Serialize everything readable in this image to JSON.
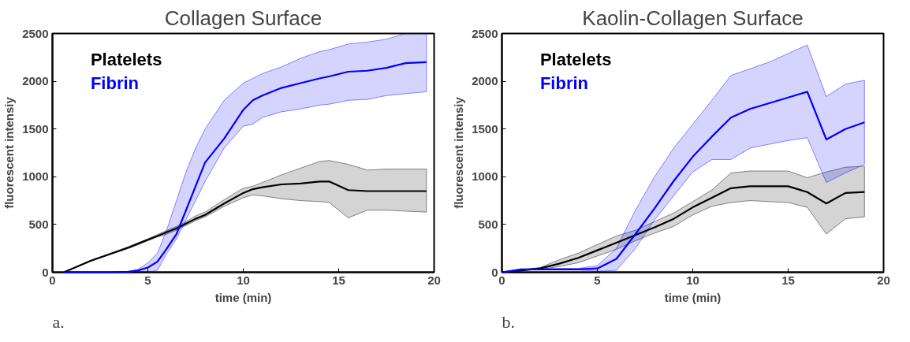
{
  "chart_data": [
    {
      "type": "line",
      "title": "Collagen Surface",
      "xlabel": "time (min)",
      "ylabel": "fluorescent intensiy",
      "annotations": [
        "a."
      ],
      "x": [
        0.6,
        2,
        3,
        4,
        4.5,
        5,
        5.5,
        6,
        6.5,
        7,
        7.5,
        8,
        9,
        10,
        10.5,
        11,
        12,
        13,
        14,
        14.5,
        15.5,
        16.5,
        17.5,
        18.5,
        19.6
      ],
      "series": [
        {
          "name": "Platelets",
          "color": "#000000",
          "values": [
            0,
            120,
            190,
            260,
            300,
            340,
            380,
            420,
            460,
            510,
            560,
            600,
            720,
            830,
            870,
            890,
            920,
            930,
            950,
            950,
            860,
            850,
            850,
            850,
            850
          ],
          "upper": [
            0,
            125,
            195,
            270,
            310,
            350,
            395,
            440,
            480,
            530,
            590,
            630,
            760,
            880,
            900,
            940,
            1020,
            1090,
            1160,
            1170,
            1130,
            1070,
            1080,
            1080,
            1080
          ],
          "lower": [
            0,
            115,
            185,
            250,
            290,
            330,
            370,
            400,
            440,
            490,
            540,
            580,
            690,
            780,
            810,
            800,
            770,
            750,
            740,
            730,
            570,
            650,
            650,
            640,
            630
          ]
        },
        {
          "name": "Fibrin",
          "color": "#0000ff",
          "values": [
            0,
            0,
            0,
            5,
            20,
            50,
            110,
            250,
            400,
            650,
            900,
            1150,
            1400,
            1700,
            1800,
            1850,
            1930,
            1980,
            2030,
            2050,
            2100,
            2110,
            2140,
            2190,
            2200
          ],
          "upper": [
            0,
            0,
            0,
            10,
            30,
            100,
            200,
            450,
            750,
            1050,
            1300,
            1500,
            1800,
            1980,
            2030,
            2080,
            2150,
            2240,
            2310,
            2330,
            2390,
            2410,
            2440,
            2500,
            2500
          ],
          "lower": [
            0,
            0,
            0,
            0,
            5,
            0,
            20,
            200,
            350,
            550,
            750,
            950,
            1300,
            1530,
            1550,
            1620,
            1680,
            1710,
            1750,
            1760,
            1800,
            1810,
            1850,
            1870,
            1890
          ]
        }
      ],
      "xlim": [
        0,
        20
      ],
      "xticks": [
        0,
        5,
        10,
        15,
        20
      ],
      "ylim": [
        0,
        2500
      ],
      "yticks": [
        0,
        500,
        1000,
        1500,
        2000,
        2500
      ],
      "legend": "top left",
      "grid": false,
      "line_style": "solid"
    },
    {
      "type": "line",
      "title": "Kaolin-Collagen Surface",
      "xlabel": "time (min)",
      "ylabel": "fluorescent intensiy",
      "annotations": [
        "b."
      ],
      "x": [
        0,
        1,
        2,
        3,
        4,
        5,
        6,
        7,
        8,
        9,
        10,
        11,
        12,
        13,
        14,
        15,
        16,
        17,
        18,
        19
      ],
      "series": [
        {
          "name": "Platelets",
          "color": "#000000",
          "values": [
            0,
            20,
            40,
            90,
            150,
            230,
            310,
            390,
            470,
            560,
            680,
            780,
            880,
            900,
            900,
            900,
            840,
            720,
            830,
            840
          ],
          "upper": [
            0,
            25,
            50,
            130,
            200,
            290,
            380,
            440,
            530,
            620,
            740,
            860,
            1040,
            1060,
            1060,
            1060,
            990,
            1050,
            1100,
            1110
          ],
          "lower": [
            0,
            15,
            30,
            60,
            100,
            170,
            240,
            330,
            410,
            480,
            600,
            690,
            730,
            750,
            740,
            730,
            680,
            400,
            560,
            580
          ]
        },
        {
          "name": "Fibrin",
          "color": "#0000ff",
          "values": [
            0,
            30,
            30,
            30,
            30,
            40,
            140,
            400,
            670,
            955,
            1210,
            1420,
            1620,
            1710,
            1770,
            1830,
            1890,
            1390,
            1500,
            1570
          ],
          "upper": [
            0,
            35,
            35,
            40,
            40,
            70,
            250,
            650,
            1000,
            1300,
            1550,
            1800,
            2060,
            2130,
            2200,
            2290,
            2380,
            1840,
            1970,
            2010
          ],
          "lower": [
            0,
            25,
            25,
            25,
            25,
            10,
            20,
            250,
            550,
            800,
            1050,
            1180,
            1180,
            1300,
            1340,
            1380,
            1410,
            940,
            1040,
            1130
          ]
        }
      ],
      "xlim": [
        0,
        20
      ],
      "xticks": [
        0,
        5,
        10,
        15,
        20
      ],
      "ylim": [
        0,
        2500
      ],
      "yticks": [
        0,
        500,
        1000,
        1500,
        2000,
        2500
      ],
      "legend": "top left",
      "grid": false,
      "line_style": "solid"
    }
  ]
}
